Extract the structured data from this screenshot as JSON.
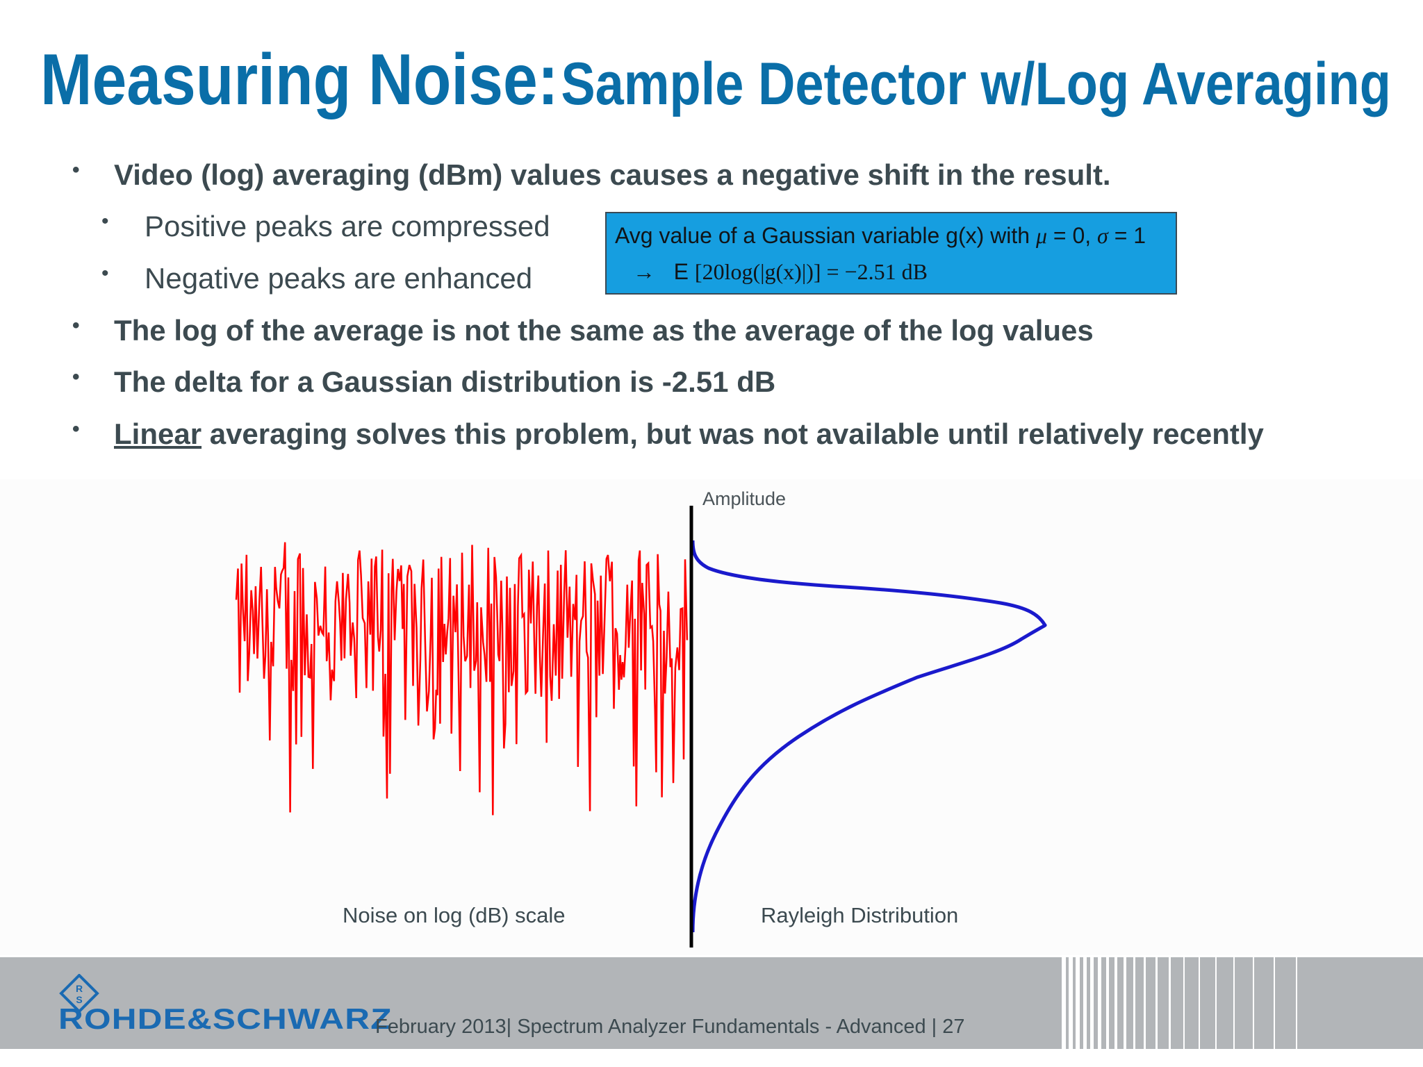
{
  "title": {
    "main": "Measuring Noise:",
    "sub": "Sample Detector w/Log Averaging"
  },
  "bullets": {
    "b1": "Video (log) averaging (dBm) values causes a negative shift in the result.",
    "b1a": "Positive peaks are compressed",
    "b1b": "Negative peaks are enhanced",
    "b2": "The log of the average is not the same as the average of the log values",
    "b3": "The delta for a Gaussian distribution is -2.51 dB",
    "b4_underlined": "Linear",
    "b4_rest": " averaging solves this problem, but was not available until relatively recently"
  },
  "formula": {
    "line1_text": "Avg value of a Gaussian variable g(x) with ",
    "line1_mu": "μ",
    "line1_eq": " = 0, ",
    "line1_sigma": "σ",
    "line1_eq2": " = 1",
    "line2_arrow": "→",
    "line2_E": "E",
    "line2_expr": "[20log(|g(x)|)] = −2.51 dB"
  },
  "figure": {
    "axis_label": "Amplitude",
    "left_caption": "Noise on log (dB) scale",
    "right_caption": "Rayleigh Distribution",
    "noise_color": "#ff0000",
    "curve_color": "#1a1acc",
    "axis_color": "#000000"
  },
  "footer": {
    "brand": "ROHDE&SCHWARZ",
    "text": "February 2013|  Spectrum Analyzer Fundamentals - Advanced  |  27",
    "logo_letters": "R&S",
    "brand_color": "#1a6ab2"
  },
  "icons": {
    "bullet": "bullet-dot",
    "logo": "rohde-schwarz-diamond-logo"
  }
}
